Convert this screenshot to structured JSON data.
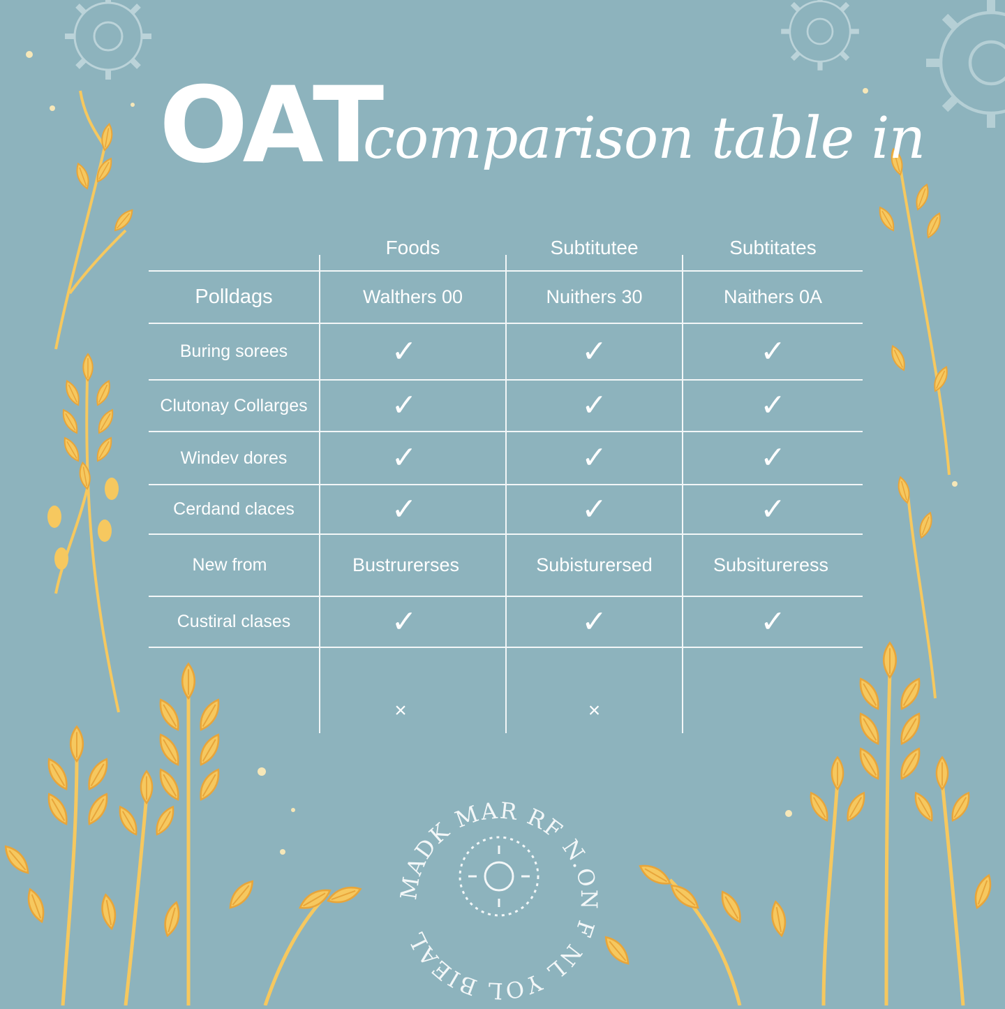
{
  "title": {
    "main": "OAT",
    "script": "comparison table in"
  },
  "columns": [
    "Foods",
    "Subtitutee",
    "Subtitates"
  ],
  "rows": [
    {
      "label": "Polldags",
      "cells": [
        "Walthers 00",
        "Nuithers 30",
        "Naithers 0A"
      ]
    },
    {
      "label": "Buring sorees",
      "cells": [
        "check",
        "check",
        "check"
      ]
    },
    {
      "label": "Clutonay Collarges",
      "cells": [
        "check",
        "check",
        "check"
      ]
    },
    {
      "label": "Windev dores",
      "cells": [
        "check",
        "check",
        "check"
      ]
    },
    {
      "label": "Cerdand claces",
      "cells": [
        "check",
        "check",
        "check"
      ]
    },
    {
      "label": "New from",
      "cells": [
        "Bustrurerses",
        "Subisturersed",
        "Subsitureress"
      ]
    },
    {
      "label": "Custiral clases",
      "cells": [
        "check",
        "check",
        "check"
      ]
    }
  ],
  "footer_marks": [
    "cross",
    "cross",
    ""
  ],
  "glyphs": {
    "check": "✓",
    "cross": "×"
  },
  "seal": {
    "text": "MADK MAR RF N.ON F NL YOL BIEAL",
    "icon": "sun-icon"
  },
  "colors": {
    "background": "#8db3bd",
    "text": "#ffffff",
    "wheat": "#f6c85f",
    "wheat_dark": "#e8a53a",
    "gear": "#c7dbe0"
  }
}
